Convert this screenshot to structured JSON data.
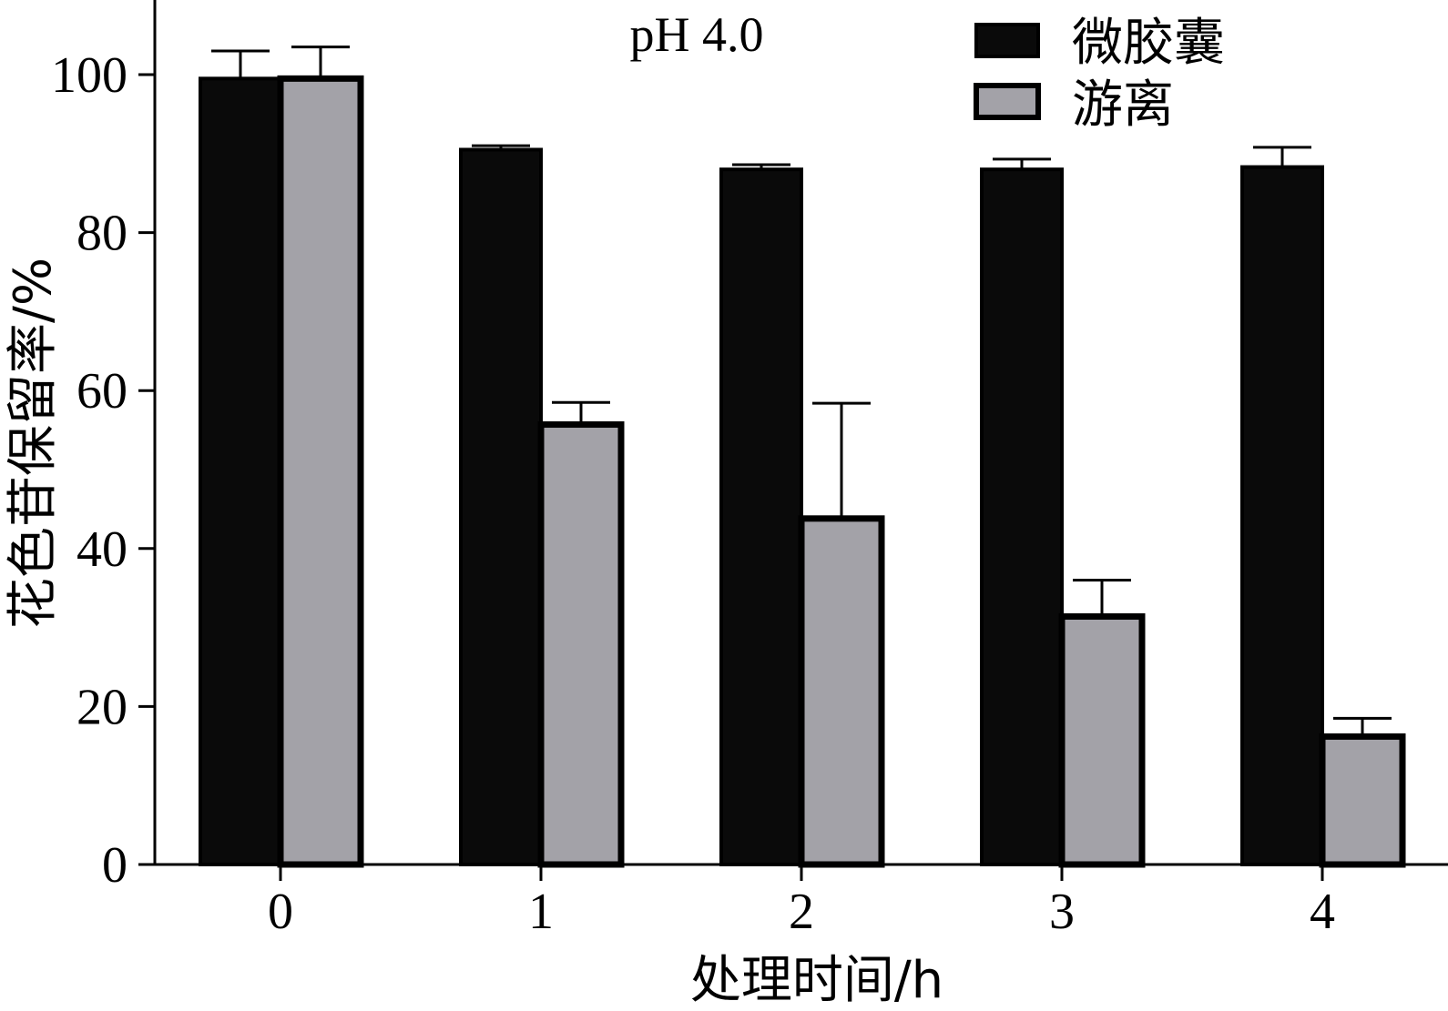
{
  "chart_data": {
    "type": "bar",
    "annotation": "pH 4.0",
    "xlabel": "处理时间/h",
    "ylabel": "花色苷保留率/%",
    "categories": [
      "0",
      "1",
      "2",
      "3",
      "4"
    ],
    "yticks": [
      "0",
      "20",
      "40",
      "60",
      "80",
      "100"
    ],
    "ylim": [
      0,
      110
    ],
    "series": [
      {
        "name": "微胶囊",
        "color": "#0a0a0a",
        "values": [
          99.5,
          90.5,
          88.0,
          88.0,
          88.3
        ],
        "errors": [
          3.5,
          0.5,
          0.6,
          1.3,
          2.5
        ]
      },
      {
        "name": "游离",
        "color": "#a3a2a8",
        "values": [
          99.5,
          55.7,
          43.8,
          31.4,
          16.2
        ],
        "errors": [
          4.0,
          2.8,
          14.6,
          4.6,
          2.3
        ]
      }
    ],
    "legend_position": "top-right",
    "grid": false
  }
}
